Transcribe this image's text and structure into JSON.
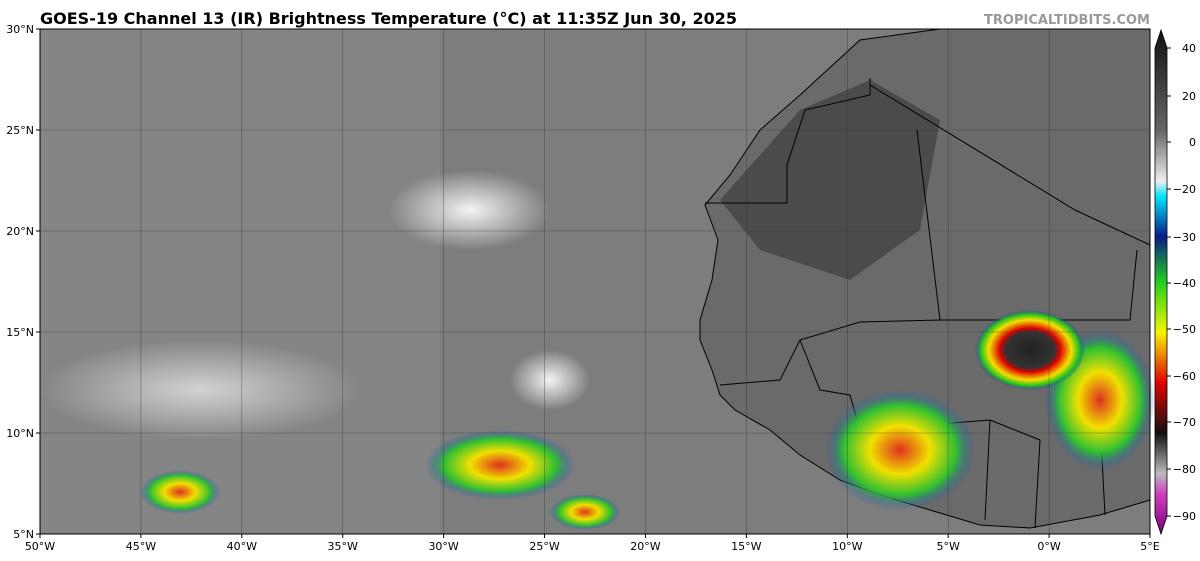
{
  "header": {
    "title": "GOES-19 Channel 13 (IR) Brightness Temperature (°C) at 11:35Z Jun 30, 2025",
    "credit": "TROPICALTIDBITS.COM"
  },
  "map": {
    "lon_labels": [
      "50°W",
      "45°W",
      "40°W",
      "35°W",
      "30°W",
      "25°W",
      "20°W",
      "15°W",
      "10°W",
      "5°W",
      "0°W",
      "5°E"
    ],
    "lat_labels": [
      "30°N",
      "25°N",
      "20°N",
      "15°N",
      "10°N",
      "5°N"
    ]
  },
  "colorbar": {
    "ticks": [
      "40",
      "20",
      "0",
      "−20",
      "−30",
      "−40",
      "−50",
      "−60",
      "−70",
      "−80",
      "−90"
    ]
  }
}
